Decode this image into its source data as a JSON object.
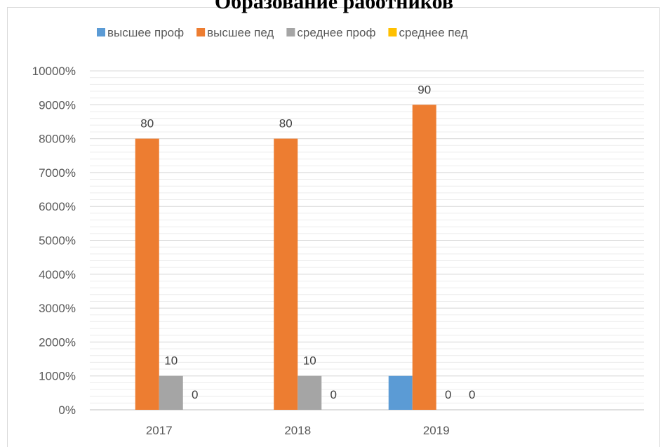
{
  "chart_data": {
    "type": "bar",
    "title": "Образование работников",
    "categories": [
      "2017",
      "2018",
      "2019"
    ],
    "series": [
      {
        "name": "высшее проф",
        "color": "#5b9bd5",
        "values": [
          null,
          null,
          10
        ],
        "labels": [
          null,
          null,
          null
        ]
      },
      {
        "name": "высшее пед",
        "color": "#ed7d31",
        "values": [
          80,
          80,
          90
        ],
        "labels": [
          "80",
          "80",
          "90"
        ]
      },
      {
        "name": "среднее проф",
        "color": "#a5a5a5",
        "values": [
          10,
          10,
          0
        ],
        "labels": [
          "10",
          "10",
          "0"
        ]
      },
      {
        "name": "среднее пед",
        "color": "#ffc000",
        "values": [
          0,
          0,
          0
        ],
        "labels": [
          "0",
          "0",
          "0"
        ]
      }
    ],
    "yticks": [
      "0%",
      "1000%",
      "2000%",
      "3000%",
      "4000%",
      "5000%",
      "6000%",
      "7000%",
      "8000%",
      "9000%",
      "10000%"
    ],
    "ylim": [
      0,
      100
    ],
    "grid": true,
    "legend": "top"
  }
}
